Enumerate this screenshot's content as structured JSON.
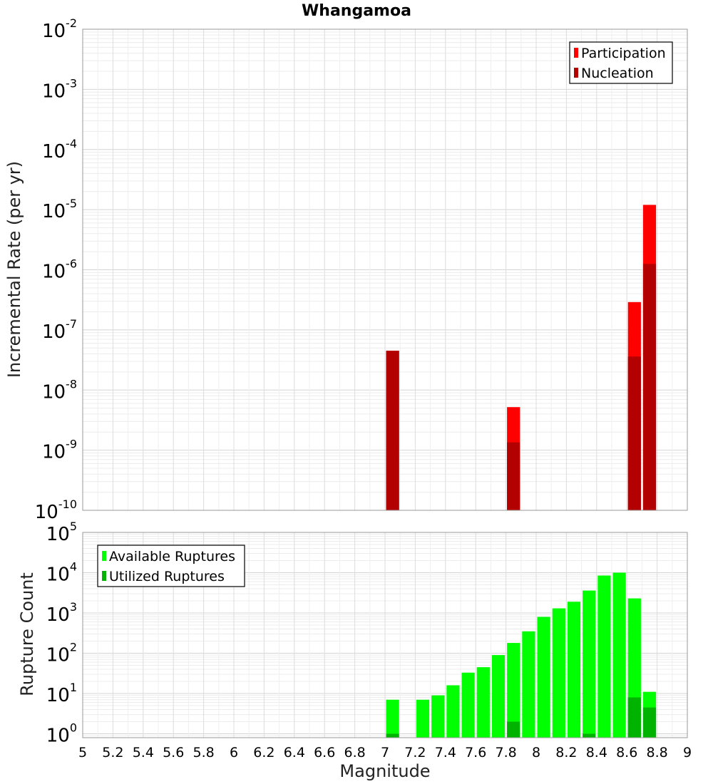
{
  "chart_data": [
    {
      "type": "bar",
      "title": "Whangamoa",
      "xlabel": "",
      "ylabel": "Incremental Rate (per yr)",
      "yscale": "log",
      "xlim": [
        5,
        9
      ],
      "ylim": [
        1e-10,
        0.01
      ],
      "y_ticks": [
        {
          "base": "10",
          "exp": "-10"
        },
        {
          "base": "10",
          "exp": "-9"
        },
        {
          "base": "10",
          "exp": "-8"
        },
        {
          "base": "10",
          "exp": "-7"
        },
        {
          "base": "10",
          "exp": "-6"
        },
        {
          "base": "10",
          "exp": "-5"
        },
        {
          "base": "10",
          "exp": "-4"
        },
        {
          "base": "10",
          "exp": "-3"
        },
        {
          "base": "10",
          "exp": "-2"
        }
      ],
      "legend_position": "top-right",
      "series": [
        {
          "name": "Participation",
          "color": "#ff0000",
          "x": [
            7.05,
            7.85,
            8.65,
            8.75
          ],
          "values": [
            4.5e-08,
            5.2e-09,
            2.9e-07,
            1.2e-05
          ]
        },
        {
          "name": "Nucleation",
          "color": "#b30000",
          "x": [
            7.05,
            7.85,
            8.65,
            8.75
          ],
          "values": [
            4.5e-08,
            1.35e-09,
            3.6e-08,
            1.25e-06
          ]
        }
      ]
    },
    {
      "type": "bar",
      "title": "",
      "xlabel": "Magnitude",
      "ylabel": "Rupture Count",
      "yscale": "log",
      "xlim": [
        5,
        9
      ],
      "ylim": [
        0.8,
        100000.0
      ],
      "y_ticks": [
        {
          "base": "10",
          "exp": "0"
        },
        {
          "base": "10",
          "exp": "1"
        },
        {
          "base": "10",
          "exp": "2"
        },
        {
          "base": "10",
          "exp": "3"
        },
        {
          "base": "10",
          "exp": "4"
        },
        {
          "base": "10",
          "exp": "5"
        }
      ],
      "x_ticks": [
        "5",
        "5.2",
        "5.4",
        "5.6",
        "5.8",
        "6",
        "6.2",
        "6.4",
        "6.6",
        "6.8",
        "7",
        "7.2",
        "7.4",
        "7.6",
        "7.8",
        "8",
        "8.2",
        "8.4",
        "8.6",
        "8.8",
        "9"
      ],
      "legend_position": "top-left",
      "series": [
        {
          "name": "Available Ruptures",
          "color": "#00ff00",
          "x": [
            7.05,
            7.25,
            7.35,
            7.45,
            7.55,
            7.65,
            7.75,
            7.85,
            7.95,
            8.05,
            8.15,
            8.25,
            8.35,
            8.45,
            8.55,
            8.65,
            8.75
          ],
          "values": [
            7,
            7,
            9,
            16,
            33,
            45,
            90,
            180,
            350,
            800,
            1300,
            1900,
            3600,
            8500,
            10000,
            2300,
            11
          ]
        },
        {
          "name": "Utilized Ruptures",
          "color": "#00b300",
          "x": [
            7.05,
            7.85,
            8.35,
            8.65,
            8.75
          ],
          "values": [
            1,
            2,
            1,
            8,
            4.5
          ]
        }
      ]
    }
  ]
}
